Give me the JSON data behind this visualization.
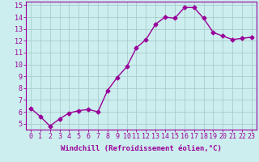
{
  "x": [
    0,
    1,
    2,
    3,
    4,
    5,
    6,
    7,
    8,
    9,
    10,
    11,
    12,
    13,
    14,
    15,
    16,
    17,
    18,
    19,
    20,
    21,
    22,
    23
  ],
  "y": [
    6.3,
    5.6,
    4.8,
    5.4,
    5.9,
    6.1,
    6.2,
    6.0,
    7.8,
    8.9,
    9.8,
    11.4,
    12.1,
    13.4,
    14.0,
    13.9,
    14.8,
    14.8,
    13.9,
    12.7,
    12.4,
    12.1,
    12.2,
    12.3
  ],
  "color": "#990099",
  "bg_color": "#cceeee",
  "grid_color": "#aacccc",
  "xlabel": "Windchill (Refroidissement éolien,°C)",
  "ylim": [
    4.5,
    15.3
  ],
  "xlim": [
    -0.5,
    23.5
  ],
  "yticks": [
    5,
    6,
    7,
    8,
    9,
    10,
    11,
    12,
    13,
    14,
    15
  ],
  "xticks": [
    0,
    1,
    2,
    3,
    4,
    5,
    6,
    7,
    8,
    9,
    10,
    11,
    12,
    13,
    14,
    15,
    16,
    17,
    18,
    19,
    20,
    21,
    22,
    23
  ],
  "xtick_labels": [
    "0",
    "1",
    "2",
    "3",
    "4",
    "5",
    "6",
    "7",
    "8",
    "9",
    "10",
    "11",
    "12",
    "13",
    "14",
    "15",
    "16",
    "17",
    "18",
    "19",
    "20",
    "21",
    "22",
    "23"
  ],
  "marker": "D",
  "markersize": 2.5,
  "linewidth": 1.0,
  "xlabel_fontsize": 6.5,
  "tick_fontsize": 6.0
}
